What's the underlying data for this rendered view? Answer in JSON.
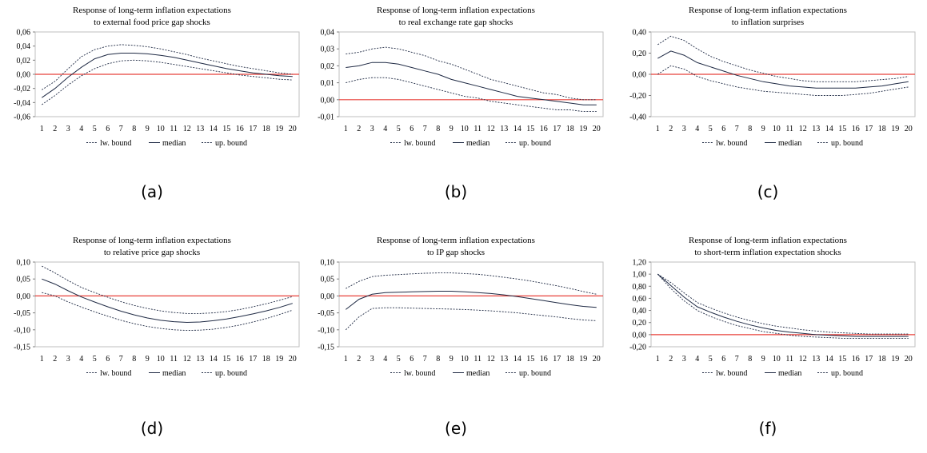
{
  "figure": {
    "chart_data": [
      {
        "type": "line",
        "caption": "(a)",
        "title_line1": "Response of long-term inflation expectations",
        "title_line2": "to external food price gap shocks",
        "x": [
          1,
          2,
          3,
          4,
          5,
          6,
          7,
          8,
          9,
          10,
          11,
          12,
          13,
          14,
          15,
          16,
          17,
          18,
          19,
          20
        ],
        "ylim": [
          -0.06,
          0.06
        ],
        "yticks": [
          -0.06,
          -0.04,
          -0.02,
          0.0,
          0.02,
          0.04,
          0.06
        ],
        "ytick_labels": [
          "-0,06",
          "-0,04",
          "-0,02",
          "0,00",
          "0,02",
          "0,04",
          "0,06"
        ],
        "zero_line_color": "#e8403a",
        "legend": [
          "lw. bound",
          "median",
          "up. bound"
        ],
        "series": [
          {
            "name": "lw. bound",
            "style": "dotted",
            "values": [
              -0.043,
              -0.03,
              -0.015,
              -0.002,
              0.008,
              0.015,
              0.019,
              0.02,
              0.019,
              0.017,
              0.014,
              0.011,
              0.008,
              0.005,
              0.002,
              -0.001,
              -0.003,
              -0.005,
              -0.007,
              -0.008
            ]
          },
          {
            "name": "median",
            "style": "solid",
            "values": [
              -0.033,
              -0.02,
              -0.004,
              0.01,
              0.022,
              0.028,
              0.03,
              0.03,
              0.029,
              0.027,
              0.024,
              0.02,
              0.016,
              0.012,
              0.008,
              0.005,
              0.002,
              0.0,
              -0.002,
              -0.003
            ]
          },
          {
            "name": "up. bound",
            "style": "dotted",
            "values": [
              -0.022,
              -0.01,
              0.008,
              0.025,
              0.035,
              0.04,
              0.042,
              0.041,
              0.039,
              0.036,
              0.032,
              0.028,
              0.023,
              0.019,
              0.015,
              0.011,
              0.008,
              0.005,
              0.002,
              0.0
            ]
          }
        ]
      },
      {
        "type": "line",
        "caption": "(b)",
        "title_line1": "Response of long-term inflation expectations",
        "title_line2": "to real exchange rate gap shocks",
        "x": [
          1,
          2,
          3,
          4,
          5,
          6,
          7,
          8,
          9,
          10,
          11,
          12,
          13,
          14,
          15,
          16,
          17,
          18,
          19,
          20
        ],
        "ylim": [
          -0.01,
          0.04
        ],
        "yticks": [
          -0.01,
          0.0,
          0.01,
          0.02,
          0.03,
          0.04
        ],
        "ytick_labels": [
          "-0,01",
          "0,00",
          "0,01",
          "0,02",
          "0,03",
          "0,04"
        ],
        "zero_line_color": "#e8403a",
        "legend": [
          "lw. bound",
          "median",
          "up. bound"
        ],
        "series": [
          {
            "name": "lw. bound",
            "style": "dotted",
            "values": [
              0.01,
              0.012,
              0.013,
              0.013,
              0.012,
              0.01,
              0.008,
              0.006,
              0.004,
              0.002,
              0.001,
              -0.001,
              -0.002,
              -0.003,
              -0.004,
              -0.005,
              -0.006,
              -0.006,
              -0.007,
              -0.007
            ]
          },
          {
            "name": "median",
            "style": "solid",
            "values": [
              0.019,
              0.02,
              0.022,
              0.022,
              0.021,
              0.019,
              0.017,
              0.015,
              0.012,
              0.01,
              0.008,
              0.006,
              0.004,
              0.002,
              0.001,
              0.0,
              -0.001,
              -0.002,
              -0.003,
              -0.003
            ]
          },
          {
            "name": "up. bound",
            "style": "dotted",
            "values": [
              0.027,
              0.028,
              0.03,
              0.031,
              0.03,
              0.028,
              0.026,
              0.023,
              0.021,
              0.018,
              0.015,
              0.012,
              0.01,
              0.008,
              0.006,
              0.004,
              0.003,
              0.001,
              0.0,
              0.0
            ]
          }
        ]
      },
      {
        "type": "line",
        "caption": "(c)",
        "title_line1": "Response of long-term inflation expectations",
        "title_line2": "to inflation surprises",
        "x": [
          1,
          2,
          3,
          4,
          5,
          6,
          7,
          8,
          9,
          10,
          11,
          12,
          13,
          14,
          15,
          16,
          17,
          18,
          19,
          20
        ],
        "ylim": [
          -0.4,
          0.4
        ],
        "yticks": [
          -0.4,
          -0.2,
          0.0,
          0.2,
          0.4
        ],
        "ytick_labels": [
          "-0,40",
          "-0,20",
          "0,00",
          "0,20",
          "0,40"
        ],
        "zero_line_color": "#e8403a",
        "legend": [
          "lw. bound",
          "median",
          "up. bound"
        ],
        "series": [
          {
            "name": "lw. bound",
            "style": "dotted",
            "values": [
              0.0,
              0.08,
              0.05,
              -0.02,
              -0.06,
              -0.09,
              -0.12,
              -0.14,
              -0.16,
              -0.17,
              -0.18,
              -0.19,
              -0.2,
              -0.2,
              -0.2,
              -0.19,
              -0.18,
              -0.16,
              -0.14,
              -0.12
            ]
          },
          {
            "name": "median",
            "style": "solid",
            "values": [
              0.15,
              0.22,
              0.18,
              0.11,
              0.07,
              0.03,
              -0.01,
              -0.04,
              -0.07,
              -0.09,
              -0.11,
              -0.12,
              -0.13,
              -0.13,
              -0.13,
              -0.13,
              -0.12,
              -0.11,
              -0.09,
              -0.07
            ]
          },
          {
            "name": "up. bound",
            "style": "dotted",
            "values": [
              0.28,
              0.36,
              0.32,
              0.24,
              0.17,
              0.12,
              0.08,
              0.04,
              0.01,
              -0.02,
              -0.04,
              -0.06,
              -0.07,
              -0.07,
              -0.07,
              -0.07,
              -0.06,
              -0.05,
              -0.04,
              -0.02
            ]
          }
        ]
      },
      {
        "type": "line",
        "caption": "(d)",
        "title_line1": "Response of long-term inflation expectations",
        "title_line2": "to relative price gap shocks",
        "x": [
          1,
          2,
          3,
          4,
          5,
          6,
          7,
          8,
          9,
          10,
          11,
          12,
          13,
          14,
          15,
          16,
          17,
          18,
          19,
          20
        ],
        "ylim": [
          -0.15,
          0.1
        ],
        "yticks": [
          -0.15,
          -0.1,
          -0.05,
          0.0,
          0.05,
          0.1
        ],
        "ytick_labels": [
          "-0,15",
          "-0,10",
          "-0,05",
          "0,00",
          "0,05",
          "0,10"
        ],
        "zero_line_color": "#e8403a",
        "legend": [
          "lw. bound",
          "median",
          "up. bound"
        ],
        "series": [
          {
            "name": "lw. bound",
            "style": "dotted",
            "values": [
              0.01,
              0.0,
              -0.018,
              -0.033,
              -0.047,
              -0.06,
              -0.072,
              -0.082,
              -0.09,
              -0.096,
              -0.1,
              -0.102,
              -0.101,
              -0.098,
              -0.093,
              -0.086,
              -0.077,
              -0.067,
              -0.055,
              -0.042
            ]
          },
          {
            "name": "median",
            "style": "solid",
            "values": [
              0.05,
              0.035,
              0.015,
              -0.003,
              -0.018,
              -0.032,
              -0.045,
              -0.056,
              -0.065,
              -0.072,
              -0.076,
              -0.078,
              -0.077,
              -0.073,
              -0.068,
              -0.061,
              -0.053,
              -0.044,
              -0.034,
              -0.022
            ]
          },
          {
            "name": "up. bound",
            "style": "dotted",
            "values": [
              0.088,
              0.068,
              0.045,
              0.025,
              0.01,
              -0.004,
              -0.017,
              -0.028,
              -0.037,
              -0.044,
              -0.049,
              -0.052,
              -0.052,
              -0.05,
              -0.046,
              -0.04,
              -0.032,
              -0.023,
              -0.013,
              -0.002
            ]
          }
        ]
      },
      {
        "type": "line",
        "caption": "(e)",
        "title_line1": "Response of long-term inflation expectations",
        "title_line2": "to IP gap shocks",
        "x": [
          1,
          2,
          3,
          4,
          5,
          6,
          7,
          8,
          9,
          10,
          11,
          12,
          13,
          14,
          15,
          16,
          17,
          18,
          19,
          20
        ],
        "ylim": [
          -0.15,
          0.1
        ],
        "yticks": [
          -0.15,
          -0.1,
          -0.05,
          0.0,
          0.05,
          0.1
        ],
        "ytick_labels": [
          "-0,15",
          "-0,10",
          "-0,05",
          "0,00",
          "0,05",
          "0,10"
        ],
        "zero_line_color": "#e8403a",
        "legend": [
          "lw. bound",
          "median",
          "up. bound"
        ],
        "series": [
          {
            "name": "lw. bound",
            "style": "dotted",
            "values": [
              -0.1,
              -0.062,
              -0.037,
              -0.035,
              -0.035,
              -0.036,
              -0.037,
              -0.038,
              -0.039,
              -0.04,
              -0.042,
              -0.044,
              -0.047,
              -0.05,
              -0.054,
              -0.058,
              -0.062,
              -0.067,
              -0.071,
              -0.073
            ]
          },
          {
            "name": "median",
            "style": "solid",
            "values": [
              -0.04,
              -0.01,
              0.005,
              0.01,
              0.011,
              0.012,
              0.013,
              0.014,
              0.014,
              0.012,
              0.01,
              0.007,
              0.003,
              -0.002,
              -0.008,
              -0.014,
              -0.02,
              -0.026,
              -0.031,
              -0.034
            ]
          },
          {
            "name": "up. bound",
            "style": "dotted",
            "values": [
              0.022,
              0.043,
              0.057,
              0.061,
              0.063,
              0.065,
              0.067,
              0.068,
              0.068,
              0.066,
              0.064,
              0.06,
              0.055,
              0.05,
              0.044,
              0.037,
              0.03,
              0.022,
              0.013,
              0.005
            ]
          }
        ]
      },
      {
        "type": "line",
        "caption": "(f)",
        "title_line1": "Response of long-term inflation expectations",
        "title_line2": "to short-term inflation expectation shocks",
        "x": [
          1,
          2,
          3,
          4,
          5,
          6,
          7,
          8,
          9,
          10,
          11,
          12,
          13,
          14,
          15,
          16,
          17,
          18,
          19,
          20
        ],
        "ylim": [
          -0.2,
          1.2
        ],
        "yticks": [
          -0.2,
          0.0,
          0.2,
          0.4,
          0.6,
          0.8,
          1.0,
          1.2
        ],
        "ytick_labels": [
          "-0,20",
          "0,00",
          "0,20",
          "0,40",
          "0,60",
          "0,80",
          "1,00",
          "1,20"
        ],
        "zero_line_color": "#e8403a",
        "legend": [
          "lw. bound",
          "median",
          "up. bound"
        ],
        "series": [
          {
            "name": "lw. bound",
            "style": "dotted",
            "values": [
              1.0,
              0.76,
              0.56,
              0.4,
              0.3,
              0.22,
              0.15,
              0.1,
              0.05,
              0.02,
              -0.01,
              -0.03,
              -0.04,
              -0.05,
              -0.06,
              -0.06,
              -0.06,
              -0.06,
              -0.06,
              -0.06
            ]
          },
          {
            "name": "median",
            "style": "solid",
            "values": [
              1.0,
              0.81,
              0.62,
              0.46,
              0.37,
              0.29,
              0.22,
              0.16,
              0.11,
              0.07,
              0.04,
              0.02,
              0.0,
              -0.01,
              -0.02,
              -0.03,
              -0.03,
              -0.03,
              -0.03,
              -0.03
            ]
          },
          {
            "name": "up. bound",
            "style": "dotted",
            "values": [
              1.0,
              0.86,
              0.69,
              0.53,
              0.44,
              0.36,
              0.29,
              0.23,
              0.18,
              0.14,
              0.11,
              0.08,
              0.06,
              0.04,
              0.03,
              0.02,
              0.01,
              0.01,
              0.01,
              0.01
            ]
          }
        ]
      }
    ]
  }
}
